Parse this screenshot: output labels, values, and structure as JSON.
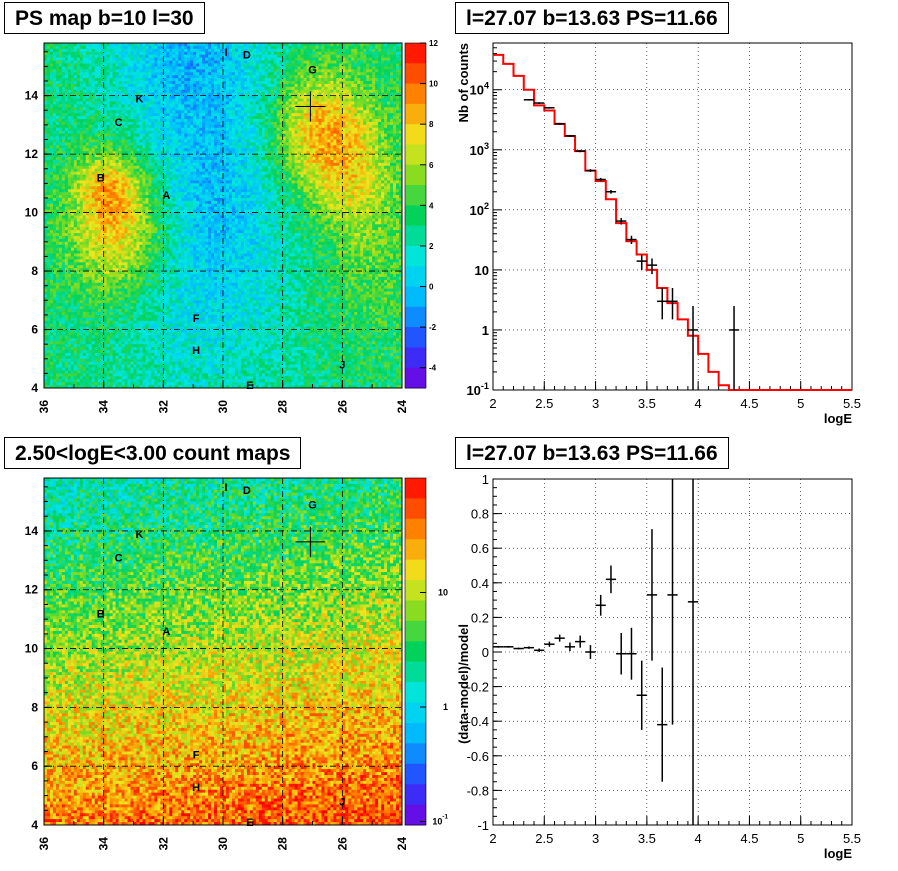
{
  "titles": {
    "top_left": "PS map b=10 l=30",
    "top_right": "l=27.07 b=13.63 PS=11.66",
    "bottom_left": "2.50<logE<3.00 count maps",
    "bottom_right": "l=27.07 b=13.63 PS=11.66"
  },
  "colors": {
    "model_line": "#ff0000",
    "data_points": "#000000",
    "grid": "#000000"
  },
  "chart_data": [
    {
      "type": "heatmap",
      "title": "PS map b=10 l=30",
      "xlim": [
        36,
        24
      ],
      "ylim": [
        4,
        15.8
      ],
      "xticks": [
        "36",
        "34",
        "32",
        "30",
        "28",
        "26",
        "24"
      ],
      "yticks": [
        "4",
        "6",
        "8",
        "10",
        "12",
        "14"
      ],
      "colorbar": {
        "range": [
          -5,
          12
        ],
        "ticks": [
          "12",
          "10",
          "8",
          "6",
          "4",
          "2",
          "0",
          "-2",
          "-4"
        ],
        "scale": "linear"
      },
      "grid": true,
      "marker": {
        "l": 27.07,
        "b": 13.63
      },
      "sources": [
        {
          "label": "I",
          "l": 29.9,
          "b": 15.5
        },
        {
          "label": "D",
          "l": 29.2,
          "b": 15.4
        },
        {
          "label": "G",
          "l": 27.0,
          "b": 14.9
        },
        {
          "label": "K",
          "l": 32.8,
          "b": 13.9
        },
        {
          "label": "C",
          "l": 33.5,
          "b": 13.1
        },
        {
          "label": "B",
          "l": 34.1,
          "b": 11.2
        },
        {
          "label": "A",
          "l": 31.9,
          "b": 10.6
        },
        {
          "label": "F",
          "l": 30.9,
          "b": 6.4
        },
        {
          "label": "H",
          "l": 30.9,
          "b": 5.3
        },
        {
          "label": "J",
          "l": 26.0,
          "b": 4.8
        },
        {
          "label": "E",
          "l": 29.1,
          "b": 4.1
        }
      ]
    },
    {
      "type": "line",
      "title": "l=27.07 b=13.63 PS=11.66",
      "xlabel": "logE",
      "ylabel": "Nb of counts",
      "xlim": [
        2,
        5.5
      ],
      "ylim": [
        0.1,
        60000
      ],
      "yscale": "log",
      "xticks": [
        "2",
        "2.5",
        "3",
        "3.5",
        "4",
        "4.5",
        "5",
        "5.5"
      ],
      "yticks": [
        "10^-1",
        "1",
        "10",
        "10^2",
        "10^3",
        "10^4"
      ],
      "grid": true,
      "series": [
        {
          "kind": "model_histogram",
          "bin_width": 0.1,
          "bin_starts": [
            2.0,
            2.1,
            2.2,
            2.3,
            2.4,
            2.5,
            2.6,
            2.7,
            2.8,
            2.9,
            3.0,
            3.1,
            3.2,
            3.3,
            3.4,
            3.5,
            3.6,
            3.7,
            3.8,
            3.9,
            4.0,
            4.1,
            4.2,
            4.3,
            4.4,
            4.5,
            4.6,
            4.7,
            4.8,
            4.9,
            5.0,
            5.1,
            5.2,
            5.3,
            5.4
          ],
          "values": [
            38000,
            27000,
            17000,
            10000,
            5500,
            4500,
            2700,
            1700,
            950,
            450,
            300,
            150,
            60,
            30,
            18,
            10,
            5,
            2.8,
            1.5,
            0.8,
            0.4,
            0.2,
            0.12,
            0.1,
            0.1,
            0.1,
            0.1,
            0.1,
            0.1,
            0.1,
            0.1,
            0.1,
            0.1,
            0.1,
            0.1
          ]
        },
        {
          "kind": "data_points",
          "x": [
            2.35,
            2.45,
            2.55,
            2.65,
            2.75,
            2.85,
            2.95,
            3.05,
            3.15,
            3.25,
            3.35,
            3.45,
            3.55,
            3.65,
            3.75,
            3.95,
            4.35
          ],
          "y": [
            6800,
            6000,
            5000,
            2700,
            1700,
            950,
            450,
            320,
            200,
            65,
            32,
            14,
            12,
            3,
            3,
            1,
            1
          ],
          "yerr_low": [
            6600,
            5800,
            4850,
            2600,
            1630,
            910,
            425,
            300,
            186,
            57,
            27,
            10,
            8.5,
            1.5,
            1.5,
            0.1,
            0.1
          ],
          "yerr_high": [
            7000,
            6200,
            5150,
            2800,
            1770,
            990,
            475,
            340,
            214,
            73,
            37,
            18,
            15.5,
            5,
            5,
            2.5,
            2.5
          ]
        }
      ]
    },
    {
      "type": "heatmap",
      "title": "2.50<logE<3.00 count maps",
      "xlim": [
        36,
        24
      ],
      "ylim": [
        4,
        15.8
      ],
      "xticks": [
        "36",
        "34",
        "32",
        "30",
        "28",
        "26",
        "24"
      ],
      "yticks": [
        "4",
        "6",
        "8",
        "10",
        "12",
        "14"
      ],
      "colorbar": {
        "scale": "log",
        "ticks": [
          "10",
          "1",
          "10^-1"
        ]
      },
      "grid": true,
      "marker": {
        "l": 27.07,
        "b": 13.63
      }
    },
    {
      "type": "scatter",
      "title": "l=27.07 b=13.63 PS=11.66",
      "xlabel": "logE",
      "ylabel": "(data-model)/model",
      "xlim": [
        2,
        5.5
      ],
      "ylim": [
        -1,
        1
      ],
      "xticks": [
        "2",
        "2.5",
        "3",
        "3.5",
        "4",
        "4.5",
        "5",
        "5.5"
      ],
      "yticks": [
        "-1",
        "-0.8",
        "-0.6",
        "-0.4",
        "-0.2",
        "0",
        "0.2",
        "0.4",
        "0.6",
        "0.8",
        "1"
      ],
      "grid": true,
      "points": {
        "x": [
          2.05,
          2.15,
          2.25,
          2.35,
          2.45,
          2.55,
          2.65,
          2.75,
          2.85,
          2.95,
          3.05,
          3.15,
          3.25,
          3.35,
          3.45,
          3.55,
          3.65,
          3.75,
          3.95
        ],
        "y": [
          0.03,
          0.03,
          0.02,
          0.025,
          0.01,
          0.045,
          0.08,
          0.03,
          0.06,
          0.0,
          0.27,
          0.42,
          -0.01,
          -0.01,
          -0.25,
          0.33,
          -0.42,
          0.33,
          0.29
        ],
        "yerr": [
          0.005,
          0.005,
          0.005,
          0.007,
          0.01,
          0.015,
          0.02,
          0.025,
          0.035,
          0.04,
          0.06,
          0.08,
          0.12,
          0.15,
          0.2,
          0.38,
          0.33,
          0.75,
          1.3
        ]
      }
    }
  ]
}
